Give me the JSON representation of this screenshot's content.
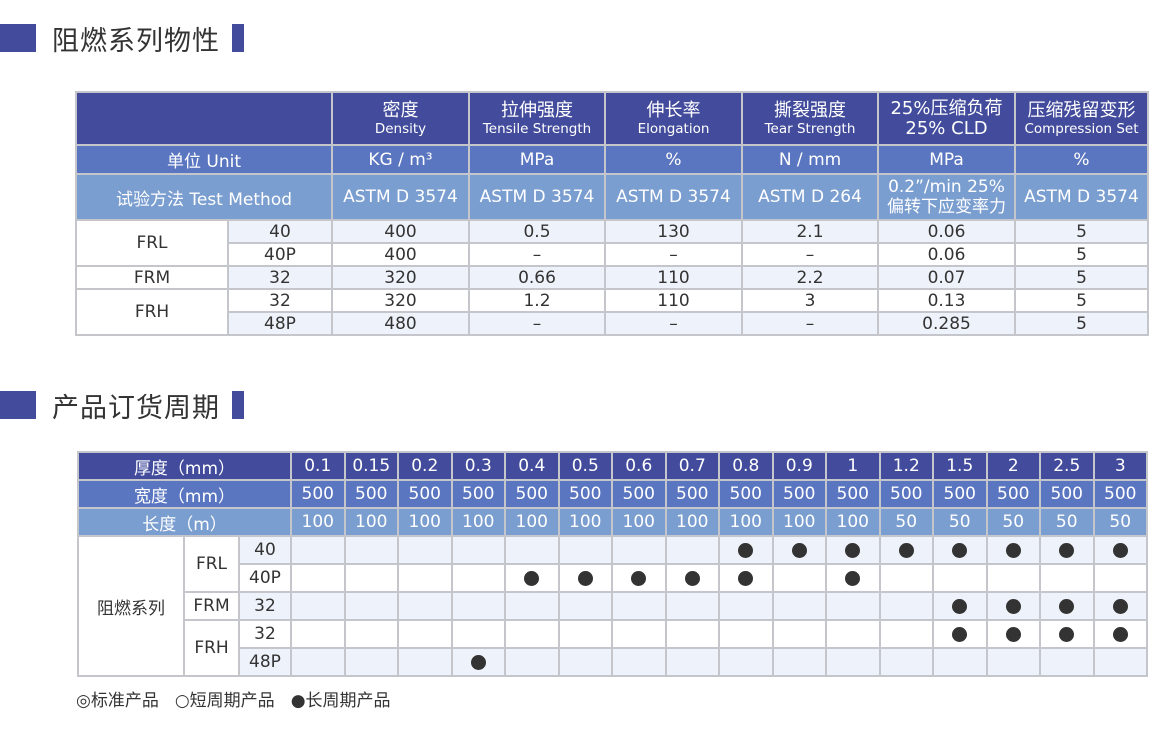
{
  "colors": {
    "header_dark": "#434c9c",
    "header_mid": "#5b76c0",
    "header_light": "#7b9ed0",
    "row_shade": "#eef2fa",
    "dot": "#333333"
  },
  "section1": {
    "title": "阻燃系列物性"
  },
  "props": {
    "columns": [
      {
        "cn": "密度",
        "en": "Density",
        "unit": "KG / m³",
        "method": "ASTM D 3574"
      },
      {
        "cn": "拉伸强度",
        "en": "Tensile Strength",
        "unit": "MPa",
        "method": "ASTM D 3574"
      },
      {
        "cn": "伸长率",
        "en": "Elongation",
        "unit": "%",
        "method": "ASTM D 3574"
      },
      {
        "cn": "撕裂强度",
        "en": "Tear Strength",
        "unit": "N / mm",
        "method": "ASTM D 264"
      },
      {
        "cn": "25%压缩负荷",
        "en": "25% CLD",
        "unit": "MPa",
        "method": "0.2”/min 25% 偏转下应变率力"
      },
      {
        "cn": "压缩残留变形",
        "en": "Compression Set",
        "unit": "%",
        "method": "ASTM D 3574"
      }
    ],
    "unit_label": "单位  Unit",
    "method_label": "试验方法  Test Method",
    "groups": [
      {
        "name": "FRL",
        "rows": [
          {
            "grade": "40",
            "values": [
              "400",
              "0.5",
              "130",
              "2.1",
              "0.06",
              "5"
            ]
          },
          {
            "grade": "40P",
            "values": [
              "400",
              "–",
              "–",
              "–",
              "0.06",
              "5"
            ]
          }
        ]
      },
      {
        "name": "FRM",
        "rows": [
          {
            "grade": "32",
            "values": [
              "320",
              "0.66",
              "110",
              "2.2",
              "0.07",
              "5"
            ]
          }
        ]
      },
      {
        "name": "FRH",
        "rows": [
          {
            "grade": "32",
            "values": [
              "320",
              "1.2",
              "110",
              "3",
              "0.13",
              "5"
            ]
          },
          {
            "grade": "48P",
            "values": [
              "480",
              "–",
              "–",
              "–",
              "0.285",
              "5"
            ]
          }
        ]
      }
    ]
  },
  "section2": {
    "title": "产品订货周期"
  },
  "order": {
    "thickness_label": "厚度（mm）",
    "width_label": "宽度（mm）",
    "length_label": "长度（m）",
    "thickness": [
      "0.1",
      "0.15",
      "0.2",
      "0.3",
      "0.4",
      "0.5",
      "0.6",
      "0.7",
      "0.8",
      "0.9",
      "1",
      "1.2",
      "1.5",
      "2",
      "2.5",
      "3"
    ],
    "width": [
      "500",
      "500",
      "500",
      "500",
      "500",
      "500",
      "500",
      "500",
      "500",
      "500",
      "500",
      "500",
      "500",
      "500",
      "500",
      "500"
    ],
    "length": [
      "100",
      "100",
      "100",
      "100",
      "100",
      "100",
      "100",
      "100",
      "100",
      "100",
      "100",
      "50",
      "50",
      "50",
      "50",
      "50"
    ],
    "series_label": "阻燃系列",
    "groups": [
      {
        "name": "FRL",
        "rows": [
          {
            "grade": "40",
            "long": [
              "0.8",
              "0.9",
              "1",
              "1.2",
              "1.5",
              "2",
              "2.5",
              "3"
            ]
          },
          {
            "grade": "40P",
            "long": [
              "0.4",
              "0.5",
              "0.6",
              "0.7",
              "0.8",
              "1"
            ]
          }
        ]
      },
      {
        "name": "FRM",
        "rows": [
          {
            "grade": "32",
            "long": [
              "1.5",
              "2",
              "2.5",
              "3"
            ]
          }
        ]
      },
      {
        "name": "FRH",
        "rows": [
          {
            "grade": "32",
            "long": [
              "1.5",
              "2",
              "2.5",
              "3"
            ]
          },
          {
            "grade": "48P",
            "long": [
              "0.3"
            ]
          }
        ]
      }
    ],
    "legend": [
      "◎标准产品",
      "○短周期产品",
      "●长周期产品"
    ]
  }
}
